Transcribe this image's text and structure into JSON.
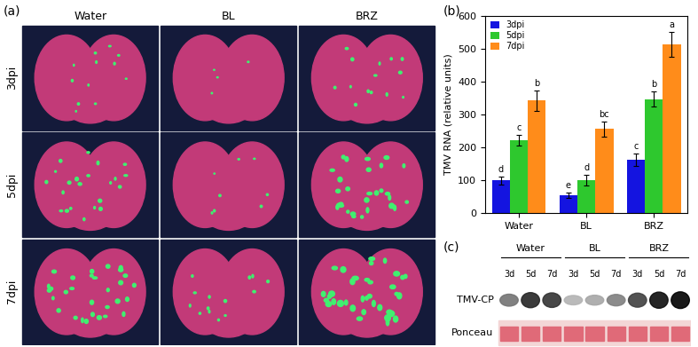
{
  "chart_data": {
    "type": "bar",
    "categories": [
      "Water",
      "BL",
      "BRZ"
    ],
    "ylabel": "TMV RNA (relative units)",
    "ylim": [
      0,
      600
    ],
    "yticks": [
      0,
      100,
      200,
      300,
      400,
      500,
      600
    ],
    "legend": "upper left",
    "series": [
      {
        "name": "3dpi",
        "color": "#1414e0",
        "values": [
          100,
          55,
          163
        ],
        "errors": [
          12,
          9,
          18
        ],
        "annotations": [
          "d",
          "e",
          "c"
        ]
      },
      {
        "name": "5dpi",
        "color": "#2ec82e",
        "values": [
          222,
          102,
          347
        ],
        "errors": [
          17,
          16,
          22
        ],
        "annotations": [
          "c",
          "d",
          "b"
        ]
      },
      {
        "name": "7dpi",
        "color": "#ff8c1a",
        "values": [
          342,
          256,
          512
        ],
        "errors": [
          30,
          22,
          38
        ],
        "annotations": [
          "b",
          "bc",
          "a"
        ]
      }
    ]
  },
  "panel_labels": [
    "(a)",
    "(b)",
    "(c)"
  ],
  "panel_a": {
    "columns": [
      "Water",
      "BL",
      "BRZ"
    ],
    "rows": [
      "3dpi",
      "5dpi",
      "7dpi"
    ]
  },
  "panel_c": {
    "groups": [
      "Water",
      "BL",
      "BRZ"
    ],
    "lanes": [
      "3d",
      "5d",
      "7d"
    ],
    "rows": [
      "TMV-CP",
      "Ponceau"
    ]
  }
}
